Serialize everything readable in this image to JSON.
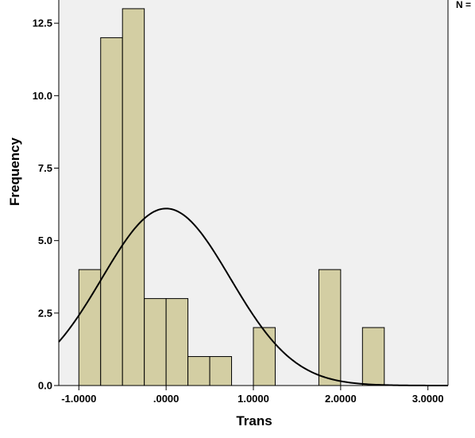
{
  "chart_data": {
    "type": "bar",
    "subtype": "histogram",
    "xlabel": "Trans",
    "ylabel": "Frequency",
    "x_ticks": [
      {
        "value": -1.0,
        "label": "-1.0000"
      },
      {
        "value": 0.0,
        "label": ".0000"
      },
      {
        "value": 1.0,
        "label": "1.0000"
      },
      {
        "value": 2.0,
        "label": "2.0000"
      },
      {
        "value": 3.0,
        "label": "3.0000"
      }
    ],
    "y_ticks": [
      {
        "value": 0,
        "label": "0.0"
      },
      {
        "value": 2.5,
        "label": "2.5"
      },
      {
        "value": 5,
        "label": "5.0"
      },
      {
        "value": 7.5,
        "label": "7.5"
      },
      {
        "value": 10,
        "label": "10.0"
      },
      {
        "value": 12.5,
        "label": "12.5"
      }
    ],
    "xlim": [
      -1.23,
      3.23
    ],
    "ylim": [
      0,
      13.3
    ],
    "bin_width": 0.25,
    "bins": [
      {
        "start": -1.0,
        "end": -0.75,
        "count": 4
      },
      {
        "start": -0.75,
        "end": -0.5,
        "count": 12
      },
      {
        "start": -0.5,
        "end": -0.25,
        "count": 13
      },
      {
        "start": -0.25,
        "end": 0.0,
        "count": 3
      },
      {
        "start": 0.0,
        "end": 0.25,
        "count": 3
      },
      {
        "start": 0.25,
        "end": 0.5,
        "count": 1
      },
      {
        "start": 0.5,
        "end": 0.75,
        "count": 1
      },
      {
        "start": 1.0,
        "end": 1.25,
        "count": 2
      },
      {
        "start": 1.75,
        "end": 2.0,
        "count": 4
      },
      {
        "start": 2.25,
        "end": 2.5,
        "count": 2
      }
    ],
    "normal_curve": {
      "mean": 0.0,
      "std_dev": 0.735,
      "n": 45
    },
    "grid": false,
    "plot_background": "#f0f0f0",
    "bar_fill": "#d3cea3",
    "bar_stroke": "#000000",
    "curve_color": "#000000",
    "stats_label": "N ="
  }
}
